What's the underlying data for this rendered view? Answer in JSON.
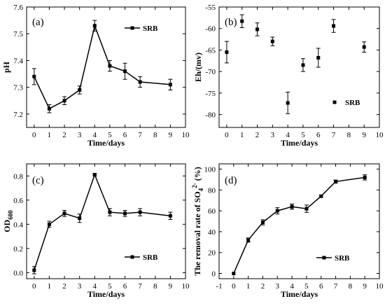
{
  "chart_data": [
    {
      "type": "line",
      "panel_label": "(a)",
      "x": [
        0,
        1,
        2,
        3,
        4,
        5,
        6,
        7,
        9
      ],
      "series": [
        {
          "name": "SRB",
          "values": [
            7.34,
            7.22,
            7.25,
            7.29,
            7.53,
            7.38,
            7.36,
            7.32,
            7.31
          ],
          "errors": [
            0.03,
            0.015,
            0.015,
            0.015,
            0.02,
            0.02,
            0.03,
            0.02,
            0.02
          ]
        }
      ],
      "xlabel": "Time/days",
      "ylabel": "pH",
      "xlim": [
        -0.5,
        10
      ],
      "ylim": [
        7.15,
        7.6
      ],
      "xticks": [
        0,
        1,
        2,
        3,
        4,
        5,
        6,
        7,
        8,
        9,
        10
      ],
      "yticks": [
        7.2,
        7.3,
        7.4,
        7.5,
        7.6
      ],
      "ytick_labels": [
        "7.2",
        "7.3",
        "7.4",
        "7.5",
        "7.6"
      ],
      "legend": "top-right",
      "grid": false
    },
    {
      "type": "scatter",
      "panel_label": "(b)",
      "x": [
        0,
        1,
        2,
        3,
        4,
        5,
        6,
        7,
        9
      ],
      "series": [
        {
          "name": "SRB",
          "values": [
            -65.5,
            -58.3,
            -60.2,
            -63.0,
            -77.3,
            -68.5,
            -66.8,
            -59.4,
            -64.3
          ],
          "errors": [
            2.5,
            1.5,
            1.5,
            1.0,
            2.5,
            1.5,
            2.2,
            1.5,
            1.2
          ]
        }
      ],
      "xlabel": "Time/days",
      "ylabel": "Eh/(mv)",
      "xlim": [
        -0.5,
        10
      ],
      "ylim": [
        -83,
        -55
      ],
      "xticks": [
        0,
        1,
        2,
        3,
        4,
        5,
        6,
        7,
        8,
        9,
        10
      ],
      "yticks": [
        -80,
        -75,
        -70,
        -65,
        -60,
        -55
      ],
      "ytick_labels": [
        "-80",
        "-75",
        "-70",
        "-65",
        "-60",
        "-55"
      ],
      "legend": "bottom-right",
      "grid": false
    },
    {
      "type": "line",
      "panel_label": "(c)",
      "x": [
        0,
        1,
        2,
        3,
        4,
        5,
        6,
        7,
        9
      ],
      "series": [
        {
          "name": "SRB",
          "values": [
            0.02,
            0.4,
            0.49,
            0.45,
            0.81,
            0.5,
            0.49,
            0.5,
            0.47
          ],
          "errors": [
            0.03,
            0.025,
            0.025,
            0.035,
            0.01,
            0.03,
            0.025,
            0.03,
            0.03
          ]
        }
      ],
      "xlabel": "Time/days",
      "ylabel": "OD600",
      "ylabel_main": "OD",
      "ylabel_sub": "600",
      "xlim": [
        -0.5,
        10
      ],
      "ylim": [
        -0.05,
        0.9
      ],
      "xticks": [
        0,
        1,
        2,
        3,
        4,
        5,
        6,
        7,
        8,
        9,
        10
      ],
      "yticks": [
        0.0,
        0.2,
        0.4,
        0.6,
        0.8
      ],
      "ytick_labels": [
        "0.0",
        "0.2",
        "0.4",
        "0.6",
        "0.8"
      ],
      "legend": "middle-right",
      "grid": false
    },
    {
      "type": "line",
      "panel_label": "(d)",
      "x": [
        0,
        1,
        2,
        3,
        4,
        5,
        6,
        7,
        9
      ],
      "series": [
        {
          "name": "SRB",
          "values": [
            0,
            32,
            49,
            60,
            64,
            62,
            74,
            88,
            92
          ],
          "errors": [
            0,
            2,
            2.5,
            3,
            2.5,
            3.5,
            1,
            1.5,
            2.5
          ]
        }
      ],
      "xlabel": "Time/days",
      "ylabel": "The removal rate of SO4 2- (%)",
      "ylabel_main": "The removal rate of SO",
      "ylabel_sub": "4",
      "ylabel_sup": "2-",
      "ylabel_tail": " (%)",
      "xlim": [
        -1,
        10
      ],
      "ylim": [
        -5,
        105
      ],
      "xticks": [
        -1,
        0,
        1,
        2,
        3,
        4,
        5,
        6,
        7,
        8,
        9,
        10
      ],
      "yticks": [
        0,
        20,
        40,
        60,
        80,
        100
      ],
      "ytick_labels": [
        "0",
        "20",
        "40",
        "60",
        "80",
        "100"
      ],
      "legend": "bottom-right",
      "grid": false
    }
  ]
}
